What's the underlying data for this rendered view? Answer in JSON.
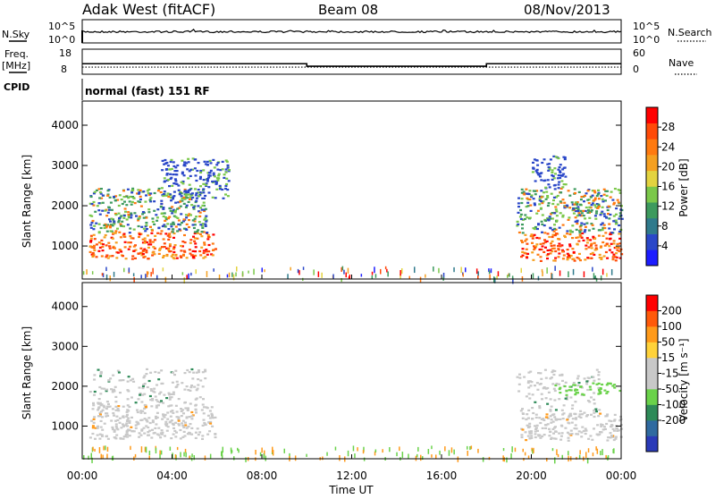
{
  "header": {
    "station": "Adak West (fitACF)",
    "beam": "Beam 08",
    "date": "08/Nov/2013"
  },
  "noise_panel": {
    "left_label": "N.Sky",
    "right_label": "N.Search",
    "left_ticks": [
      "10^5",
      "10^0"
    ],
    "right_ticks": [
      "10^5",
      "10^0"
    ]
  },
  "freq_panel": {
    "left_label_1": "Freq.",
    "left_label_2": "[MHz]",
    "right_label": "Nave",
    "left_ticks": [
      "18",
      "8"
    ],
    "right_ticks": [
      "60",
      "0"
    ],
    "freq_levels": [
      {
        "t": 0.0,
        "v": 12.2
      },
      {
        "t": 10.0,
        "v": 11.2
      },
      {
        "t": 18.0,
        "v": 12.2
      },
      {
        "t": 24.0,
        "v": 12.2
      }
    ],
    "nave_level": 17
  },
  "cpid": {
    "label": "CPID",
    "text": "normal (fast) 151 RF"
  },
  "chart_data": [
    {
      "type": "heatmap",
      "title": "",
      "xlabel": "",
      "ylabel": "Slant Range [km]",
      "xlim": [
        0,
        24
      ],
      "ylim": [
        180,
        4600
      ],
      "y_ticks": [
        "1000",
        "2000",
        "3000",
        "4000"
      ],
      "colorbar": {
        "label": "Power [dB]",
        "ticks": [
          "4",
          "8",
          "12",
          "16",
          "20",
          "24",
          "28"
        ],
        "colors": [
          "#1c1cff",
          "#2a47c8",
          "#2f7a8c",
          "#3d9a5e",
          "#7bc84a",
          "#e3d340",
          "#f5a020",
          "#ff7a10",
          "#ff4a08",
          "#ff0000"
        ]
      },
      "bands": [
        {
          "t_start": 0.3,
          "t_end": 5.9,
          "r_low": 700,
          "r_high": 1350,
          "level": "strong"
        },
        {
          "t_start": 0.3,
          "t_end": 5.5,
          "r_low": 1350,
          "r_high": 2450,
          "level": "medium"
        },
        {
          "t_start": 3.5,
          "t_end": 6.5,
          "r_low": 2200,
          "r_high": 3200,
          "level": "weak"
        },
        {
          "t_start": 19.5,
          "t_end": 24.0,
          "r_low": 650,
          "r_high": 1350,
          "level": "strong"
        },
        {
          "t_start": 19.3,
          "t_end": 24.0,
          "r_low": 1350,
          "r_high": 2450,
          "level": "medium"
        },
        {
          "t_start": 20.0,
          "t_end": 21.5,
          "r_low": 2450,
          "r_high": 3250,
          "level": "weak"
        },
        {
          "t_start": 0.0,
          "t_end": 24.0,
          "r_low": 200,
          "r_high": 650,
          "level": "ground"
        }
      ]
    },
    {
      "type": "heatmap",
      "title": "",
      "xlabel": "Time UT",
      "ylabel": "Slant Range [km]",
      "xlim": [
        0,
        24
      ],
      "ylim": [
        180,
        4600
      ],
      "x_ticks": [
        "00:00",
        "04:00",
        "08:00",
        "12:00",
        "16:00",
        "20:00",
        "00:00"
      ],
      "y_ticks": [
        "1000",
        "2000",
        "3000",
        "4000"
      ],
      "colorbar": {
        "label": "Velocity [m s⁻¹]",
        "ticks": [
          "200",
          "100",
          "50",
          "15",
          "-15",
          "-50",
          "-100",
          "-200"
        ],
        "colors": [
          "#2a3ab8",
          "#2f6aa0",
          "#2e8a58",
          "#6ad24a",
          "#c8c8c8",
          "#c8c8c8",
          "#ffd23a",
          "#ff9a1a",
          "#ff5a0a",
          "#ff0000"
        ]
      },
      "bands": [
        {
          "t_start": 0.3,
          "t_end": 5.9,
          "r_low": 700,
          "r_high": 1550,
          "level": "gray"
        },
        {
          "t_start": 0.3,
          "t_end": 5.5,
          "r_low": 1550,
          "r_high": 2450,
          "level": "gray-light"
        },
        {
          "t_start": 19.5,
          "t_end": 24.0,
          "r_low": 650,
          "r_high": 1350,
          "level": "gray"
        },
        {
          "t_start": 19.3,
          "t_end": 23.0,
          "r_low": 1350,
          "r_high": 2450,
          "level": "gray-light"
        },
        {
          "t_start": 21.0,
          "t_end": 24.0,
          "r_low": 1800,
          "r_high": 2100,
          "level": "green"
        },
        {
          "t_start": 0.0,
          "t_end": 24.0,
          "r_low": 200,
          "r_high": 650,
          "level": "ground"
        }
      ]
    }
  ]
}
